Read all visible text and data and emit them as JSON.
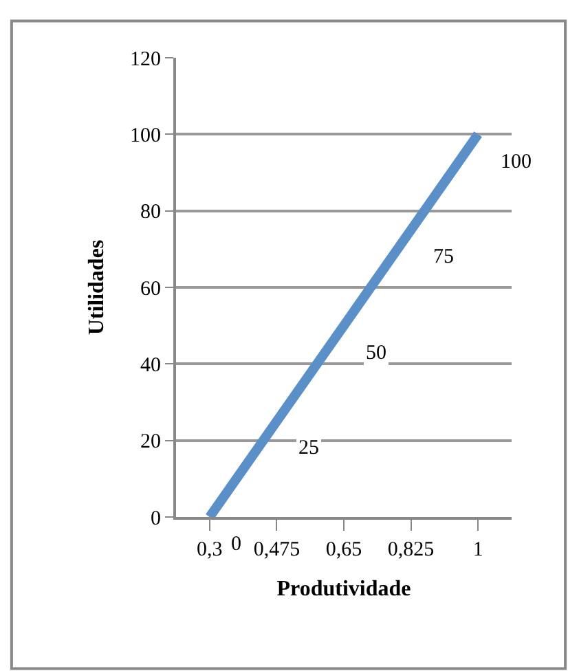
{
  "chart_data": {
    "type": "line",
    "xlabel": "Produtividade",
    "ylabel": "Utilidades",
    "categories": [
      "0,3",
      "0,475",
      "0,65",
      "0,825",
      "1"
    ],
    "series": [
      {
        "color": "#5b8fc8",
        "values": [
          0,
          25,
          50,
          75,
          100
        ]
      }
    ],
    "ylim": [
      0,
      120
    ],
    "yticks": [
      0,
      20,
      40,
      60,
      80,
      100,
      120
    ],
    "grid": "y",
    "marker": "none",
    "line_style": "solid",
    "data_labels": true
  }
}
